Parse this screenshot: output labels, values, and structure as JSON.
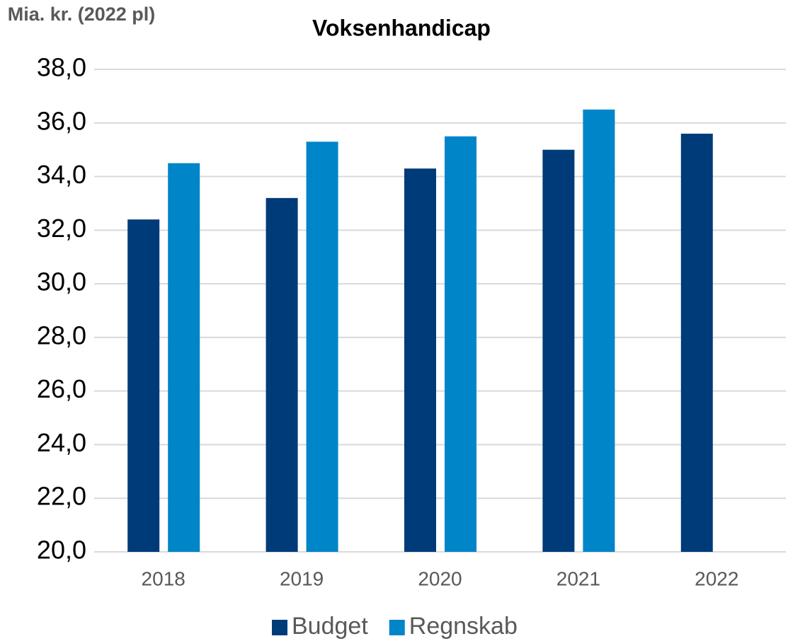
{
  "chart_data": {
    "type": "bar",
    "title": "Voksenhandicap",
    "y_label": "Mia. kr. (2022 pl)",
    "categories": [
      "2018",
      "2019",
      "2020",
      "2021",
      "2022"
    ],
    "series": [
      {
        "name": "Budget",
        "color": "#003b79",
        "values": [
          32.4,
          33.2,
          34.3,
          35.0,
          35.6
        ]
      },
      {
        "name": "Regnskab",
        "color": "#0085c9",
        "values": [
          34.5,
          35.3,
          35.5,
          36.5,
          null
        ]
      }
    ],
    "ylim": [
      20,
      38
    ],
    "yticks": [
      {
        "value": 20,
        "label": "20,0"
      },
      {
        "value": 22,
        "label": "22,0"
      },
      {
        "value": 24,
        "label": "24,0"
      },
      {
        "value": 26,
        "label": "26,0"
      },
      {
        "value": 28,
        "label": "28,0"
      },
      {
        "value": 30,
        "label": "30,0"
      },
      {
        "value": 32,
        "label": "32,0"
      },
      {
        "value": 34,
        "label": "34,0"
      },
      {
        "value": 36,
        "label": "36,0"
      },
      {
        "value": 38,
        "label": "38,0"
      }
    ],
    "grid": true,
    "legend": "bottom"
  }
}
